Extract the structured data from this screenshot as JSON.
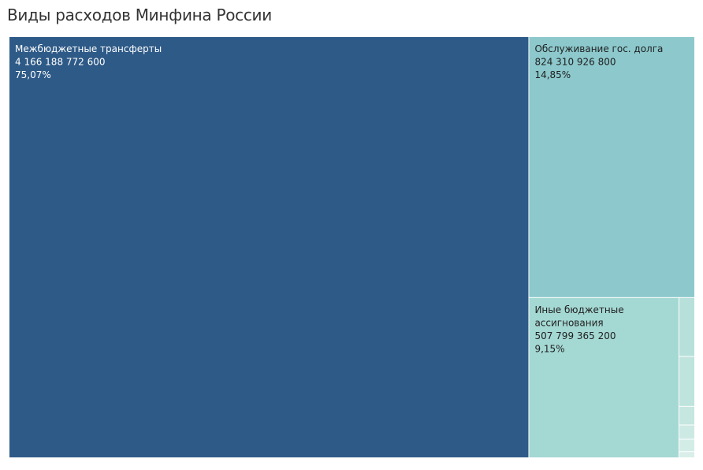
{
  "chart_data": {
    "type": "treemap",
    "title": "Виды расходов Минфина России",
    "items": [
      {
        "name_lines": [
          "Межбюджетные трансферты"
        ],
        "value": 4166188772600,
        "value_label": "4 166 188 772 600",
        "percent_label": "75,07%",
        "color": "#2e5a87",
        "text_color": "#ffffff"
      },
      {
        "name_lines": [
          "Обслуживание гос. долга"
        ],
        "value": 824310926800,
        "value_label": "824 310 926 800",
        "percent_label": "14,85%",
        "color": "#8cc8cc",
        "text_color": "#1f1f1f"
      },
      {
        "name_lines": [
          "Иные бюджетные",
          "ассигнования"
        ],
        "value": 507799365200,
        "value_label": "507 799 365 200",
        "percent_label": "9,15%",
        "color": "#a4d8d3",
        "text_color": "#1f1f1f"
      }
    ],
    "small_items": [
      {
        "value": 6.5,
        "color": "#b8e0da"
      },
      {
        "value": 5.5,
        "color": "#bfe3dd"
      },
      {
        "value": 2.0,
        "color": "#c6e6e0"
      },
      {
        "value": 1.5,
        "color": "#cde9e3"
      },
      {
        "value": 1.3,
        "color": "#d3ece6"
      },
      {
        "value": 0.6,
        "color": "#d9eee9"
      }
    ]
  }
}
